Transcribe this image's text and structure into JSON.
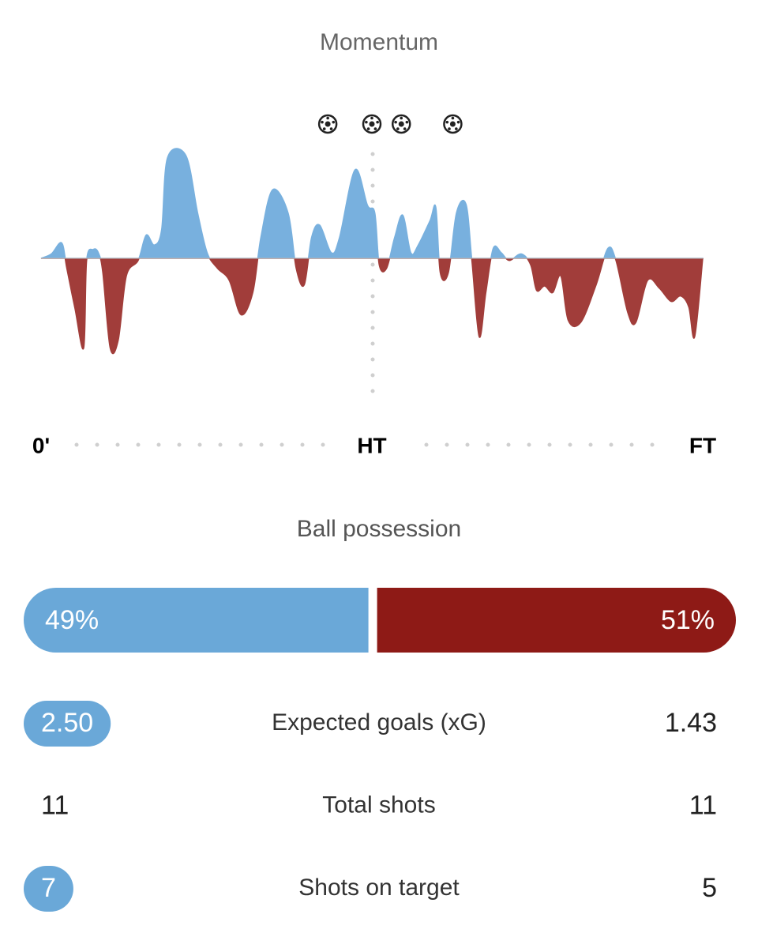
{
  "chart_data": {
    "type": "area",
    "title": "Momentum",
    "x": [
      0,
      1.4,
      2.8,
      3.5,
      4.6,
      5.8,
      6.2,
      7.1,
      7.8,
      8.4,
      9.4,
      10.5,
      11.6,
      13.2,
      14.3,
      15.4,
      16.4,
      17.2,
      19.7,
      21.3,
      22.6,
      24.0,
      25.6,
      27.2,
      28.8,
      29.9,
      31.5,
      33.6,
      34.7,
      35.8,
      36.8,
      37.9,
      39.5,
      40.6,
      42.7,
      44.4,
      45.4,
      46.0,
      47.0,
      48.1,
      49.2,
      50.3,
      51.3,
      52.9,
      53.7,
      54.3,
      55.4,
      56.5,
      57.8,
      58.6,
      59.6,
      60.5,
      61.5,
      62.6,
      63.7,
      65.3,
      66.6,
      67.4,
      68.5,
      69.6,
      70.7,
      71.7,
      73.4,
      75.5,
      77.1,
      78.2,
      79.8,
      80.9,
      82.5,
      84.1,
      85.7,
      87.0,
      88.1,
      88.9,
      90
    ],
    "values": [
      0,
      4,
      14,
      -9,
      -45,
      -81,
      -2,
      8,
      5,
      -13,
      -81,
      -74,
      -16,
      -2,
      21,
      12,
      26,
      91,
      93,
      41,
      5,
      -9,
      -20,
      -51,
      -31,
      19,
      62,
      41,
      -9,
      -24,
      19,
      30,
      5,
      19,
      80,
      48,
      41,
      -6,
      -9,
      19,
      39,
      5,
      12,
      34,
      46,
      -13,
      -13,
      41,
      49,
      -2,
      -71,
      -31,
      9,
      5,
      -2,
      4,
      -6,
      -29,
      -25,
      -31,
      -16,
      -56,
      -58,
      -24,
      9,
      -2,
      -49,
      -58,
      -20,
      -27,
      -39,
      -34,
      -44,
      -71,
      0
    ],
    "xlim": [
      0,
      90
    ],
    "ylim": [
      -100,
      100
    ],
    "xticks": [
      {
        "value": 0,
        "label": "0'"
      },
      {
        "value": 45,
        "label": "HT"
      },
      {
        "value": 90,
        "label": "FT"
      }
    ],
    "goals": [
      39,
      45,
      49,
      56
    ],
    "colors": {
      "positive": "#78b0de",
      "negative": "#a13d3a"
    }
  },
  "possession": {
    "title": "Ball possession",
    "values": [
      49,
      51
    ],
    "value_labels": [
      "49%",
      "51%"
    ],
    "colors": [
      "#6aa8d8",
      "#8e1a16"
    ]
  },
  "stats": [
    {
      "label": "Expected goals (xG)",
      "home": "2.50",
      "away": "1.43",
      "highlight": "home"
    },
    {
      "label": "Total shots",
      "home": "11",
      "away": "11"
    },
    {
      "label": "Shots on target",
      "home": "7",
      "away": "5",
      "highlight": "home"
    }
  ]
}
